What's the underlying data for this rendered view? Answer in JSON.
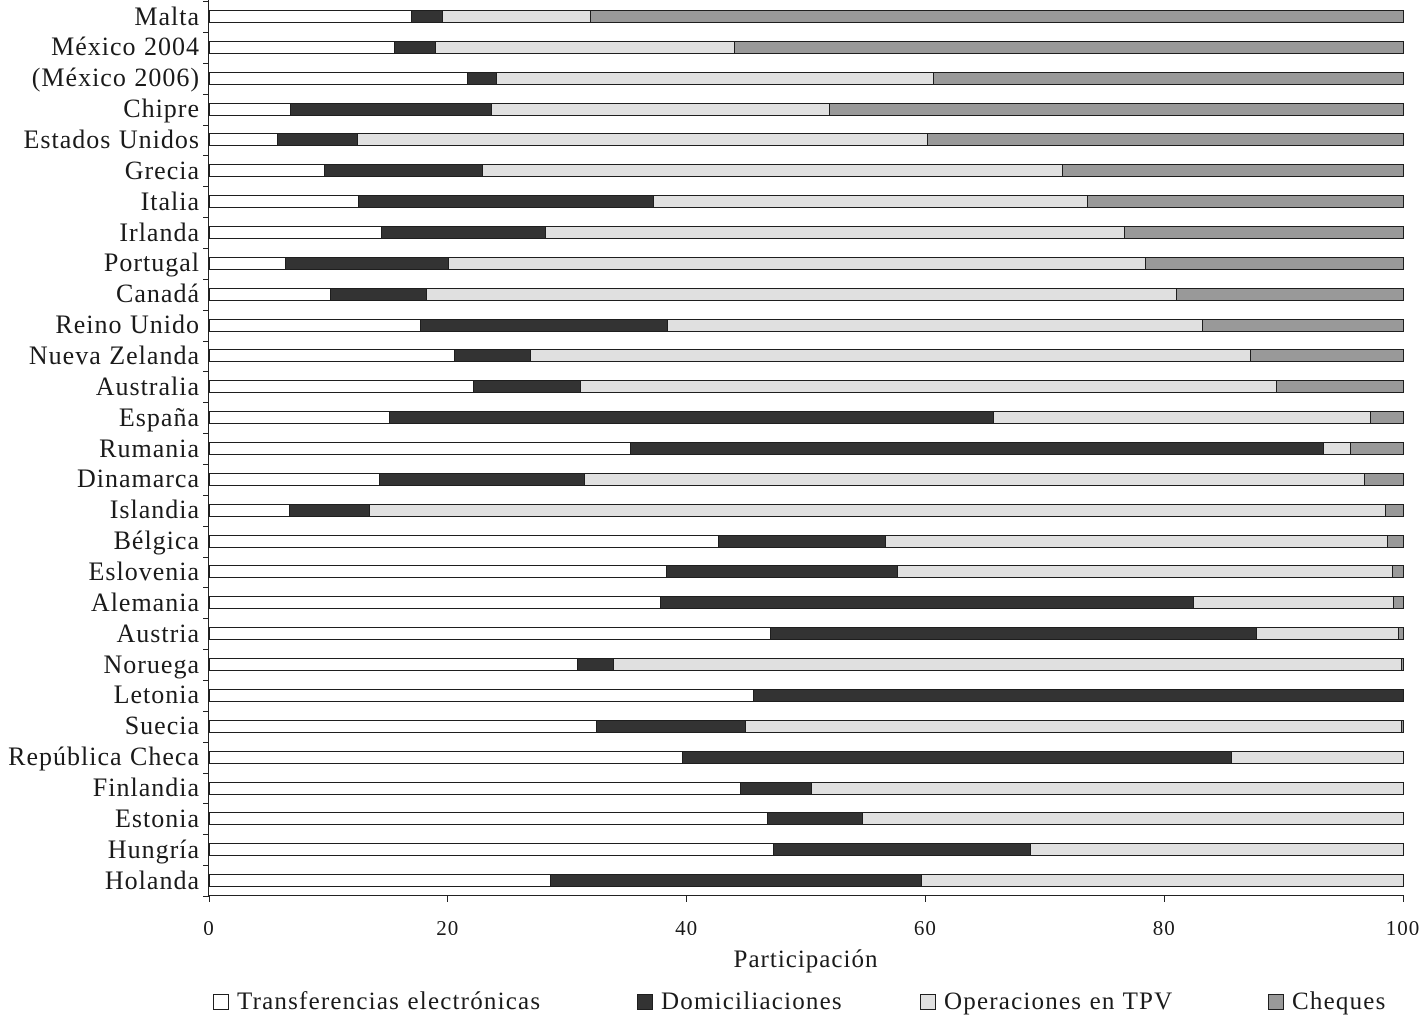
{
  "chart_data": {
    "type": "bar",
    "orientation": "horizontal",
    "stacked": true,
    "xlabel": "Participación",
    "xlim": [
      0,
      100
    ],
    "xticks": [
      0,
      20,
      40,
      60,
      80,
      100
    ],
    "grid": false,
    "legend": "bottom",
    "categories": [
      "Malta",
      "México 2004",
      "(México 2006)",
      "Chipre",
      "Estados Unidos",
      "Grecia",
      "Italia",
      "Irlanda",
      "Portugal",
      "Canadá",
      "Reino Unido",
      "Nueva Zelanda",
      "Australia",
      "España",
      "Rumania",
      "Dinamarca",
      "Islandia",
      "Bélgica",
      "Eslovenia",
      "Alemania",
      "Austria",
      "Noruega",
      "Letonia",
      "Suecia",
      "República Checa",
      "Finlandia",
      "Estonia",
      "Hungría",
      "Holanda"
    ],
    "series": [
      {
        "name": "Transferencias electrónicas",
        "color": "#ffffff",
        "values": [
          16.9,
          15.5,
          21.6,
          6.8,
          5.7,
          9.6,
          12.5,
          14.4,
          6.4,
          10.1,
          17.7,
          20.5,
          22.1,
          15.1,
          35.3,
          14.2,
          6.7,
          42.6,
          38.3,
          37.8,
          47.0,
          30.8,
          45.6,
          32.4,
          39.6,
          44.5,
          46.7,
          47.2,
          28.6
        ]
      },
      {
        "name": "Domiciliaciones",
        "color": "#333333",
        "values": [
          2.6,
          3.4,
          2.4,
          16.8,
          6.7,
          13.3,
          24.7,
          13.7,
          13.6,
          8.1,
          20.7,
          6.4,
          9.0,
          50.6,
          58.0,
          17.2,
          6.7,
          14.0,
          19.3,
          44.6,
          40.7,
          3.0,
          54.4,
          12.5,
          46.0,
          5.9,
          8.0,
          21.6,
          31.0
        ]
      },
      {
        "name": "Operaciones en TPV",
        "color": "#e0e0e0",
        "values": [
          12.4,
          25.1,
          36.6,
          28.3,
          47.7,
          48.5,
          36.3,
          48.5,
          58.4,
          62.8,
          44.8,
          60.3,
          58.3,
          31.5,
          2.3,
          65.3,
          85.1,
          42.1,
          41.5,
          16.8,
          11.9,
          66.0,
          0.0,
          54.9,
          14.4,
          49.6,
          45.3,
          31.2,
          40.4
        ]
      },
      {
        "name": "Cheques",
        "color": "#999999",
        "values": [
          68.1,
          56.0,
          39.4,
          48.1,
          39.9,
          28.6,
          26.5,
          23.4,
          21.6,
          19.0,
          16.8,
          12.8,
          10.6,
          2.8,
          4.4,
          3.3,
          1.5,
          1.3,
          0.9,
          0.8,
          0.4,
          0.2,
          0.0,
          0.2,
          0.0,
          0.0,
          0.0,
          0.0,
          0.0
        ]
      }
    ]
  }
}
